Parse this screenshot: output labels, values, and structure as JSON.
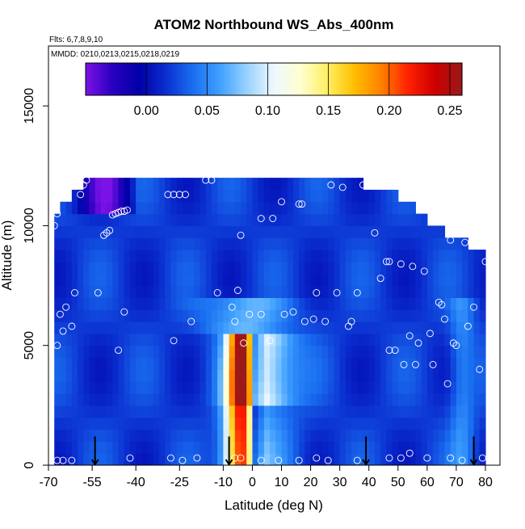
{
  "chart_data": {
    "type": "heatmap",
    "title": "ATOM2 Northbound WS_Abs_400nm",
    "subtitle_flights": "Flts: 6,7,8,9,10",
    "subtitle_dates": "MMDD: 0210,0213,0215,0218,0219",
    "xlabel": "Latitude (deg N)",
    "ylabel": "Altitude (m)",
    "xlim": [
      -70,
      85
    ],
    "ylim": [
      0,
      17500
    ],
    "x_ticks": [
      -70,
      -55,
      -40,
      -25,
      -10,
      0,
      10,
      20,
      30,
      40,
      50,
      60,
      70,
      80
    ],
    "x_tick_labels": [
      "-70",
      "-55",
      "-40",
      "-25",
      "-10",
      "0",
      "10",
      "20",
      "30",
      "40",
      "50",
      "60",
      "70",
      "80"
    ],
    "y_ticks": [
      0,
      5000,
      10000,
      15000
    ],
    "y_tick_labels": [
      "0",
      "5000",
      "10000",
      "15000"
    ],
    "colorbar": {
      "min": -0.05,
      "max": 0.26,
      "ticks": [
        0.0,
        0.05,
        0.1,
        0.15,
        0.2,
        0.25
      ],
      "tick_labels": [
        "0.00",
        "0.05",
        "0.10",
        "0.15",
        "0.20",
        "0.25"
      ],
      "colors": [
        "#7b12e6",
        "#2a00c0",
        "#0000a8",
        "#0b2fd0",
        "#1a6ff0",
        "#3fa0ff",
        "#98d2ff",
        "#eef8ff",
        "#ffffd0",
        "#ffef60",
        "#ffbe00",
        "#ff8000",
        "#ff2000",
        "#cc0000",
        "#9a1a1a"
      ]
    },
    "arrows_latitude": [
      -54,
      -8,
      39,
      76
    ],
    "field_top": [
      {
        "lat": -68,
        "alt": 10000
      },
      {
        "lat": -67,
        "alt": 10500
      },
      {
        "lat": -63,
        "alt": 11000
      },
      {
        "lat": -59,
        "alt": 11500
      },
      {
        "lat": -56,
        "alt": 12000
      },
      {
        "lat": 37,
        "alt": 12000
      },
      {
        "lat": 39,
        "alt": 11500
      },
      {
        "lat": 51,
        "alt": 11000
      },
      {
        "lat": 60,
        "alt": 10000
      },
      {
        "lat": 67,
        "alt": 9500
      },
      {
        "lat": 74,
        "alt": 9000
      },
      {
        "lat": 80,
        "alt": 8500
      }
    ],
    "points": [
      [
        -68,
        10000
      ],
      [
        -67,
        10500
      ],
      [
        -66,
        6300
      ],
      [
        -67,
        5000
      ],
      [
        -65,
        5600
      ],
      [
        -64,
        6600
      ],
      [
        -62,
        5800
      ],
      [
        -61,
        7200
      ],
      [
        -57,
        11900
      ],
      [
        -58,
        11700
      ],
      [
        -59,
        11300
      ],
      [
        -53,
        7200
      ],
      [
        -51,
        9600
      ],
      [
        -50,
        9700
      ],
      [
        -49,
        9800
      ],
      [
        -48,
        10450
      ],
      [
        -47,
        10500
      ],
      [
        -46,
        10550
      ],
      [
        -45,
        10600
      ],
      [
        -44,
        10600
      ],
      [
        -43,
        10650
      ],
      [
        -46,
        4800
      ],
      [
        -44,
        6400
      ],
      [
        -27,
        5200
      ],
      [
        -29,
        11300
      ],
      [
        -27,
        11300
      ],
      [
        -25,
        11300
      ],
      [
        -23,
        11300
      ],
      [
        -21,
        6000
      ],
      [
        -16,
        11900
      ],
      [
        -14,
        11900
      ],
      [
        -12,
        7200
      ],
      [
        -7,
        6600
      ],
      [
        -5,
        7300
      ],
      [
        -4,
        9600
      ],
      [
        -3,
        5100
      ],
      [
        -6,
        6000
      ],
      [
        -1,
        6300
      ],
      [
        3,
        10300
      ],
      [
        3,
        6300
      ],
      [
        6,
        5200
      ],
      [
        7,
        10300
      ],
      [
        10,
        11000
      ],
      [
        11,
        6300
      ],
      [
        14,
        6400
      ],
      [
        16,
        10900
      ],
      [
        17,
        10900
      ],
      [
        18,
        6000
      ],
      [
        21,
        6100
      ],
      [
        22,
        7200
      ],
      [
        25,
        6000
      ],
      [
        27,
        11700
      ],
      [
        29,
        7200
      ],
      [
        31,
        11600
      ],
      [
        33,
        5800
      ],
      [
        34,
        6000
      ],
      [
        36,
        7200
      ],
      [
        38,
        11700
      ],
      [
        42,
        9700
      ],
      [
        44,
        7800
      ],
      [
        46,
        8500
      ],
      [
        47,
        8500
      ],
      [
        47,
        4800
      ],
      [
        49,
        4800
      ],
      [
        51,
        8400
      ],
      [
        52,
        4200
      ],
      [
        54,
        5400
      ],
      [
        55,
        8300
      ],
      [
        56,
        4200
      ],
      [
        57,
        5100
      ],
      [
        59,
        8100
      ],
      [
        61,
        5500
      ],
      [
        62,
        4200
      ],
      [
        64,
        6800
      ],
      [
        65,
        6700
      ],
      [
        66,
        6100
      ],
      [
        67,
        3400
      ],
      [
        68,
        9400
      ],
      [
        69,
        5100
      ],
      [
        70,
        5000
      ],
      [
        73,
        9300
      ],
      [
        74,
        5800
      ],
      [
        76,
        6600
      ],
      [
        78,
        4000
      ],
      [
        80,
        8500
      ],
      [
        -67,
        200
      ],
      [
        -65,
        200
      ],
      [
        -62,
        200
      ],
      [
        -42,
        300
      ],
      [
        -28,
        300
      ],
      [
        -24,
        200
      ],
      [
        -19,
        300
      ],
      [
        -6,
        300
      ],
      [
        -4,
        300
      ],
      [
        3,
        200
      ],
      [
        9,
        200
      ],
      [
        16,
        200
      ],
      [
        22,
        300
      ],
      [
        26,
        200
      ],
      [
        36,
        200
      ],
      [
        47,
        300
      ],
      [
        51,
        300
      ],
      [
        54,
        500
      ],
      [
        60,
        300
      ],
      [
        68,
        300
      ],
      [
        72,
        200
      ],
      [
        79,
        300
      ]
    ]
  }
}
